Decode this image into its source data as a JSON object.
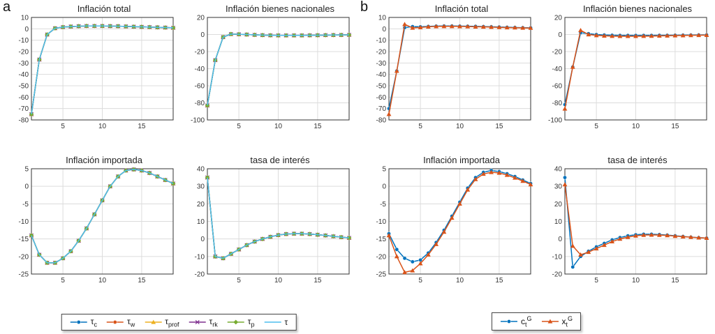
{
  "panels": [
    {
      "label": "a"
    },
    {
      "label": "b"
    }
  ],
  "colors": {
    "blue": "#0072BD",
    "orange": "#D95319",
    "yellow": "#EDB120",
    "purple": "#7E2F8E",
    "green": "#77AC30",
    "cyan": "#4DBEEE",
    "grid": "#dcdcdc",
    "axis": "#333333"
  },
  "legends": [
    {
      "panel": "a",
      "items": [
        {
          "label_main": "τ",
          "label_sub": "c",
          "label_sup": "",
          "color": "#0072BD",
          "marker": "circle"
        },
        {
          "label_main": "τ",
          "label_sub": "w",
          "label_sup": "",
          "color": "#D95319",
          "marker": "circle"
        },
        {
          "label_main": "τ",
          "label_sub": "prof",
          "label_sup": "",
          "color": "#EDB120",
          "marker": "triangle"
        },
        {
          "label_main": "τ",
          "label_sub": "rk",
          "label_sup": "",
          "color": "#7E2F8E",
          "marker": "x"
        },
        {
          "label_main": "τ",
          "label_sub": "p",
          "label_sup": "",
          "color": "#77AC30",
          "marker": "diamond"
        },
        {
          "label_main": "τ",
          "label_sub": "",
          "label_sup": "",
          "color": "#4DBEEE",
          "marker": "none"
        }
      ]
    },
    {
      "panel": "b",
      "items": [
        {
          "label_main": "c",
          "label_sub": "t",
          "label_sup": "G",
          "color": "#0072BD",
          "marker": "circle"
        },
        {
          "label_main": "x",
          "label_sub": "t",
          "label_sup": "G",
          "color": "#D95319",
          "marker": "triangle"
        }
      ]
    }
  ],
  "chart_data": [
    {
      "type": "line",
      "panel": "a",
      "title": "Inflación total",
      "x": [
        1,
        2,
        3,
        4,
        5,
        6,
        7,
        8,
        9,
        10,
        11,
        12,
        13,
        14,
        15,
        16,
        17,
        18,
        19
      ],
      "xticks": [
        5,
        10,
        15
      ],
      "xlim": [
        1,
        19
      ],
      "ylim": [
        -80,
        10
      ],
      "ytick_step": 10,
      "grid": true,
      "shared_values": [
        -75,
        -27,
        -5,
        0.5,
        1.5,
        2,
        2.3,
        2.5,
        2.5,
        2.5,
        2.4,
        2.3,
        2.1,
        1.9,
        1.7,
        1.5,
        1.3,
        1.1,
        0.9
      ],
      "series_styles": [
        {
          "name": "tau_c",
          "color": "#0072BD",
          "marker": "circle"
        },
        {
          "name": "tau_w",
          "color": "#D95319",
          "marker": "circle"
        },
        {
          "name": "tau_prof",
          "color": "#EDB120",
          "marker": "triangle"
        },
        {
          "name": "tau_rk",
          "color": "#7E2F8E",
          "marker": "x"
        },
        {
          "name": "tau_p",
          "color": "#77AC30",
          "marker": "diamond"
        },
        {
          "name": "tau",
          "color": "#4DBEEE",
          "marker": "none"
        }
      ]
    },
    {
      "type": "line",
      "panel": "a",
      "title": "Inflación bienes nacionales",
      "x": [
        1,
        2,
        3,
        4,
        5,
        6,
        7,
        8,
        9,
        10,
        11,
        12,
        13,
        14,
        15,
        16,
        17,
        18,
        19
      ],
      "xticks": [
        5,
        10,
        15
      ],
      "xlim": [
        1,
        19
      ],
      "ylim": [
        -100,
        20
      ],
      "ytick_step": 20,
      "grid": true,
      "shared_values": [
        -83,
        -30,
        -3,
        0.5,
        0.3,
        0,
        -0.4,
        -0.7,
        -0.9,
        -1,
        -1,
        -1,
        -1,
        -0.9,
        -0.8,
        -0.7,
        -0.6,
        -0.5,
        -0.4
      ],
      "series_styles": [
        {
          "name": "tau_c",
          "color": "#0072BD",
          "marker": "circle"
        },
        {
          "name": "tau_w",
          "color": "#D95319",
          "marker": "circle"
        },
        {
          "name": "tau_prof",
          "color": "#EDB120",
          "marker": "triangle"
        },
        {
          "name": "tau_rk",
          "color": "#7E2F8E",
          "marker": "x"
        },
        {
          "name": "tau_p",
          "color": "#77AC30",
          "marker": "diamond"
        },
        {
          "name": "tau",
          "color": "#4DBEEE",
          "marker": "none"
        }
      ]
    },
    {
      "type": "line",
      "panel": "a",
      "title": "Inflación importada",
      "x": [
        1,
        2,
        3,
        4,
        5,
        6,
        7,
        8,
        9,
        10,
        11,
        12,
        13,
        14,
        15,
        16,
        17,
        18,
        19
      ],
      "xticks": [
        5,
        10,
        15
      ],
      "xlim": [
        1,
        19
      ],
      "ylim": [
        -25,
        5
      ],
      "ytick_step": 5,
      "grid": true,
      "shared_values": [
        -14,
        -19.5,
        -21.8,
        -21.8,
        -20.5,
        -18.5,
        -15.5,
        -12,
        -8,
        -4,
        0,
        2.8,
        4.5,
        4.8,
        4.5,
        3.8,
        2.8,
        1.8,
        0.8
      ],
      "series_styles": [
        {
          "name": "tau_c",
          "color": "#0072BD",
          "marker": "circle"
        },
        {
          "name": "tau_w",
          "color": "#D95319",
          "marker": "circle"
        },
        {
          "name": "tau_prof",
          "color": "#EDB120",
          "marker": "triangle"
        },
        {
          "name": "tau_rk",
          "color": "#7E2F8E",
          "marker": "x"
        },
        {
          "name": "tau_p",
          "color": "#77AC30",
          "marker": "diamond"
        },
        {
          "name": "tau",
          "color": "#4DBEEE",
          "marker": "none"
        }
      ]
    },
    {
      "type": "line",
      "panel": "a",
      "title": "tasa de interés",
      "x": [
        1,
        2,
        3,
        4,
        5,
        6,
        7,
        8,
        9,
        10,
        11,
        12,
        13,
        14,
        15,
        16,
        17,
        18,
        19
      ],
      "xticks": [
        5,
        10,
        15
      ],
      "xlim": [
        1,
        19
      ],
      "ylim": [
        -20,
        40
      ],
      "ytick_step": 10,
      "grid": true,
      "shared_values": [
        35,
        -10,
        -11,
        -8.5,
        -6,
        -3.5,
        -1.5,
        0,
        1.2,
        2.2,
        2.8,
        3,
        3,
        2.8,
        2.4,
        2,
        1.5,
        1,
        0.6
      ],
      "series_styles": [
        {
          "name": "tau_c",
          "color": "#0072BD",
          "marker": "circle"
        },
        {
          "name": "tau_w",
          "color": "#D95319",
          "marker": "circle"
        },
        {
          "name": "tau_prof",
          "color": "#EDB120",
          "marker": "triangle"
        },
        {
          "name": "tau_rk",
          "color": "#7E2F8E",
          "marker": "x"
        },
        {
          "name": "tau_p",
          "color": "#77AC30",
          "marker": "diamond"
        },
        {
          "name": "tau",
          "color": "#4DBEEE",
          "marker": "none"
        }
      ]
    },
    {
      "type": "line",
      "panel": "b",
      "title": "Inflación total",
      "x": [
        1,
        2,
        3,
        4,
        5,
        6,
        7,
        8,
        9,
        10,
        11,
        12,
        13,
        14,
        15,
        16,
        17,
        18,
        19
      ],
      "xticks": [
        5,
        10,
        15
      ],
      "xlim": [
        1,
        19
      ],
      "ylim": [
        -80,
        10
      ],
      "ytick_step": 10,
      "grid": true,
      "series": [
        {
          "name": "c_t_G",
          "color": "#0072BD",
          "marker": "circle",
          "values": [
            -70,
            -37,
            1,
            2,
            1.8,
            2.1,
            2.4,
            2.5,
            2.5,
            2.4,
            2.3,
            2.2,
            2,
            1.8,
            1.6,
            1.4,
            1.2,
            1,
            0.9
          ]
        },
        {
          "name": "x_t_G",
          "color": "#D95319",
          "marker": "triangle",
          "values": [
            -75,
            -37,
            4,
            0.8,
            1.2,
            1.8,
            2.1,
            2.2,
            2.2,
            2.1,
            2,
            1.8,
            1.7,
            1.5,
            1.3,
            1.1,
            1,
            0.8,
            0.7
          ]
        }
      ]
    },
    {
      "type": "line",
      "panel": "b",
      "title": "Inflación bienes nacionales",
      "x": [
        1,
        2,
        3,
        4,
        5,
        6,
        7,
        8,
        9,
        10,
        11,
        12,
        13,
        14,
        15,
        16,
        17,
        18,
        19
      ],
      "xticks": [
        5,
        10,
        15
      ],
      "xlim": [
        1,
        19
      ],
      "ylim": [
        -100,
        20
      ],
      "ytick_step": 20,
      "grid": true,
      "series": [
        {
          "name": "c_t_G",
          "color": "#0072BD",
          "marker": "circle",
          "values": [
            -82,
            -38,
            2,
            1,
            0,
            -0.5,
            -0.8,
            -1,
            -1,
            -1,
            -1,
            -1,
            -0.9,
            -0.9,
            -0.8,
            -0.7,
            -0.6,
            -0.5,
            -0.4
          ]
        },
        {
          "name": "x_t_G",
          "color": "#D95319",
          "marker": "triangle",
          "values": [
            -87,
            -38,
            5,
            0,
            -1,
            -1.5,
            -1.9,
            -2,
            -2,
            -2,
            -1.9,
            -1.8,
            -1.6,
            -1.4,
            -1.2,
            -1.1,
            -0.9,
            -0.8,
            -0.7
          ]
        }
      ]
    },
    {
      "type": "line",
      "panel": "b",
      "title": "Inflación importada",
      "x": [
        1,
        2,
        3,
        4,
        5,
        6,
        7,
        8,
        9,
        10,
        11,
        12,
        13,
        14,
        15,
        16,
        17,
        18,
        19
      ],
      "xticks": [
        5,
        10,
        15
      ],
      "xlim": [
        1,
        19
      ],
      "ylim": [
        -25,
        5
      ],
      "ytick_step": 5,
      "grid": true,
      "series": [
        {
          "name": "c_t_G",
          "color": "#0072BD",
          "marker": "circle",
          "values": [
            -13.5,
            -18,
            -20.5,
            -21.5,
            -21,
            -19,
            -16,
            -12.5,
            -8.5,
            -4.5,
            -0.5,
            2.5,
            4,
            4.5,
            4.2,
            3.6,
            2.8,
            1.8,
            0.8
          ]
        },
        {
          "name": "x_t_G",
          "color": "#D95319",
          "marker": "triangle",
          "values": [
            -14,
            -20,
            -24.5,
            -24,
            -22,
            -19.5,
            -16.5,
            -13,
            -9,
            -5,
            -1,
            2,
            3.5,
            4,
            3.8,
            3.2,
            2.4,
            1.5,
            0.5
          ]
        }
      ]
    },
    {
      "type": "line",
      "panel": "b",
      "title": "tasa de interés",
      "x": [
        1,
        2,
        3,
        4,
        5,
        6,
        7,
        8,
        9,
        10,
        11,
        12,
        13,
        14,
        15,
        16,
        17,
        18,
        19
      ],
      "xticks": [
        5,
        10,
        15
      ],
      "xlim": [
        1,
        19
      ],
      "ylim": [
        -20,
        40
      ],
      "ytick_step": 10,
      "grid": true,
      "series": [
        {
          "name": "c_t_G",
          "color": "#0072BD",
          "marker": "circle",
          "values": [
            35,
            -16,
            -10,
            -7,
            -4.5,
            -2.5,
            -0.5,
            0.8,
            1.8,
            2.4,
            2.7,
            2.7,
            2.5,
            2.2,
            1.8,
            1.4,
            1,
            0.7,
            0.5
          ]
        },
        {
          "name": "x_t_G",
          "color": "#D95319",
          "marker": "triangle",
          "values": [
            31,
            -4,
            -9,
            -7.5,
            -5.5,
            -3.5,
            -1.5,
            0,
            1,
            1.8,
            2.2,
            2.3,
            2.2,
            2,
            1.6,
            1.3,
            1,
            0.7,
            0.5
          ]
        }
      ]
    }
  ]
}
